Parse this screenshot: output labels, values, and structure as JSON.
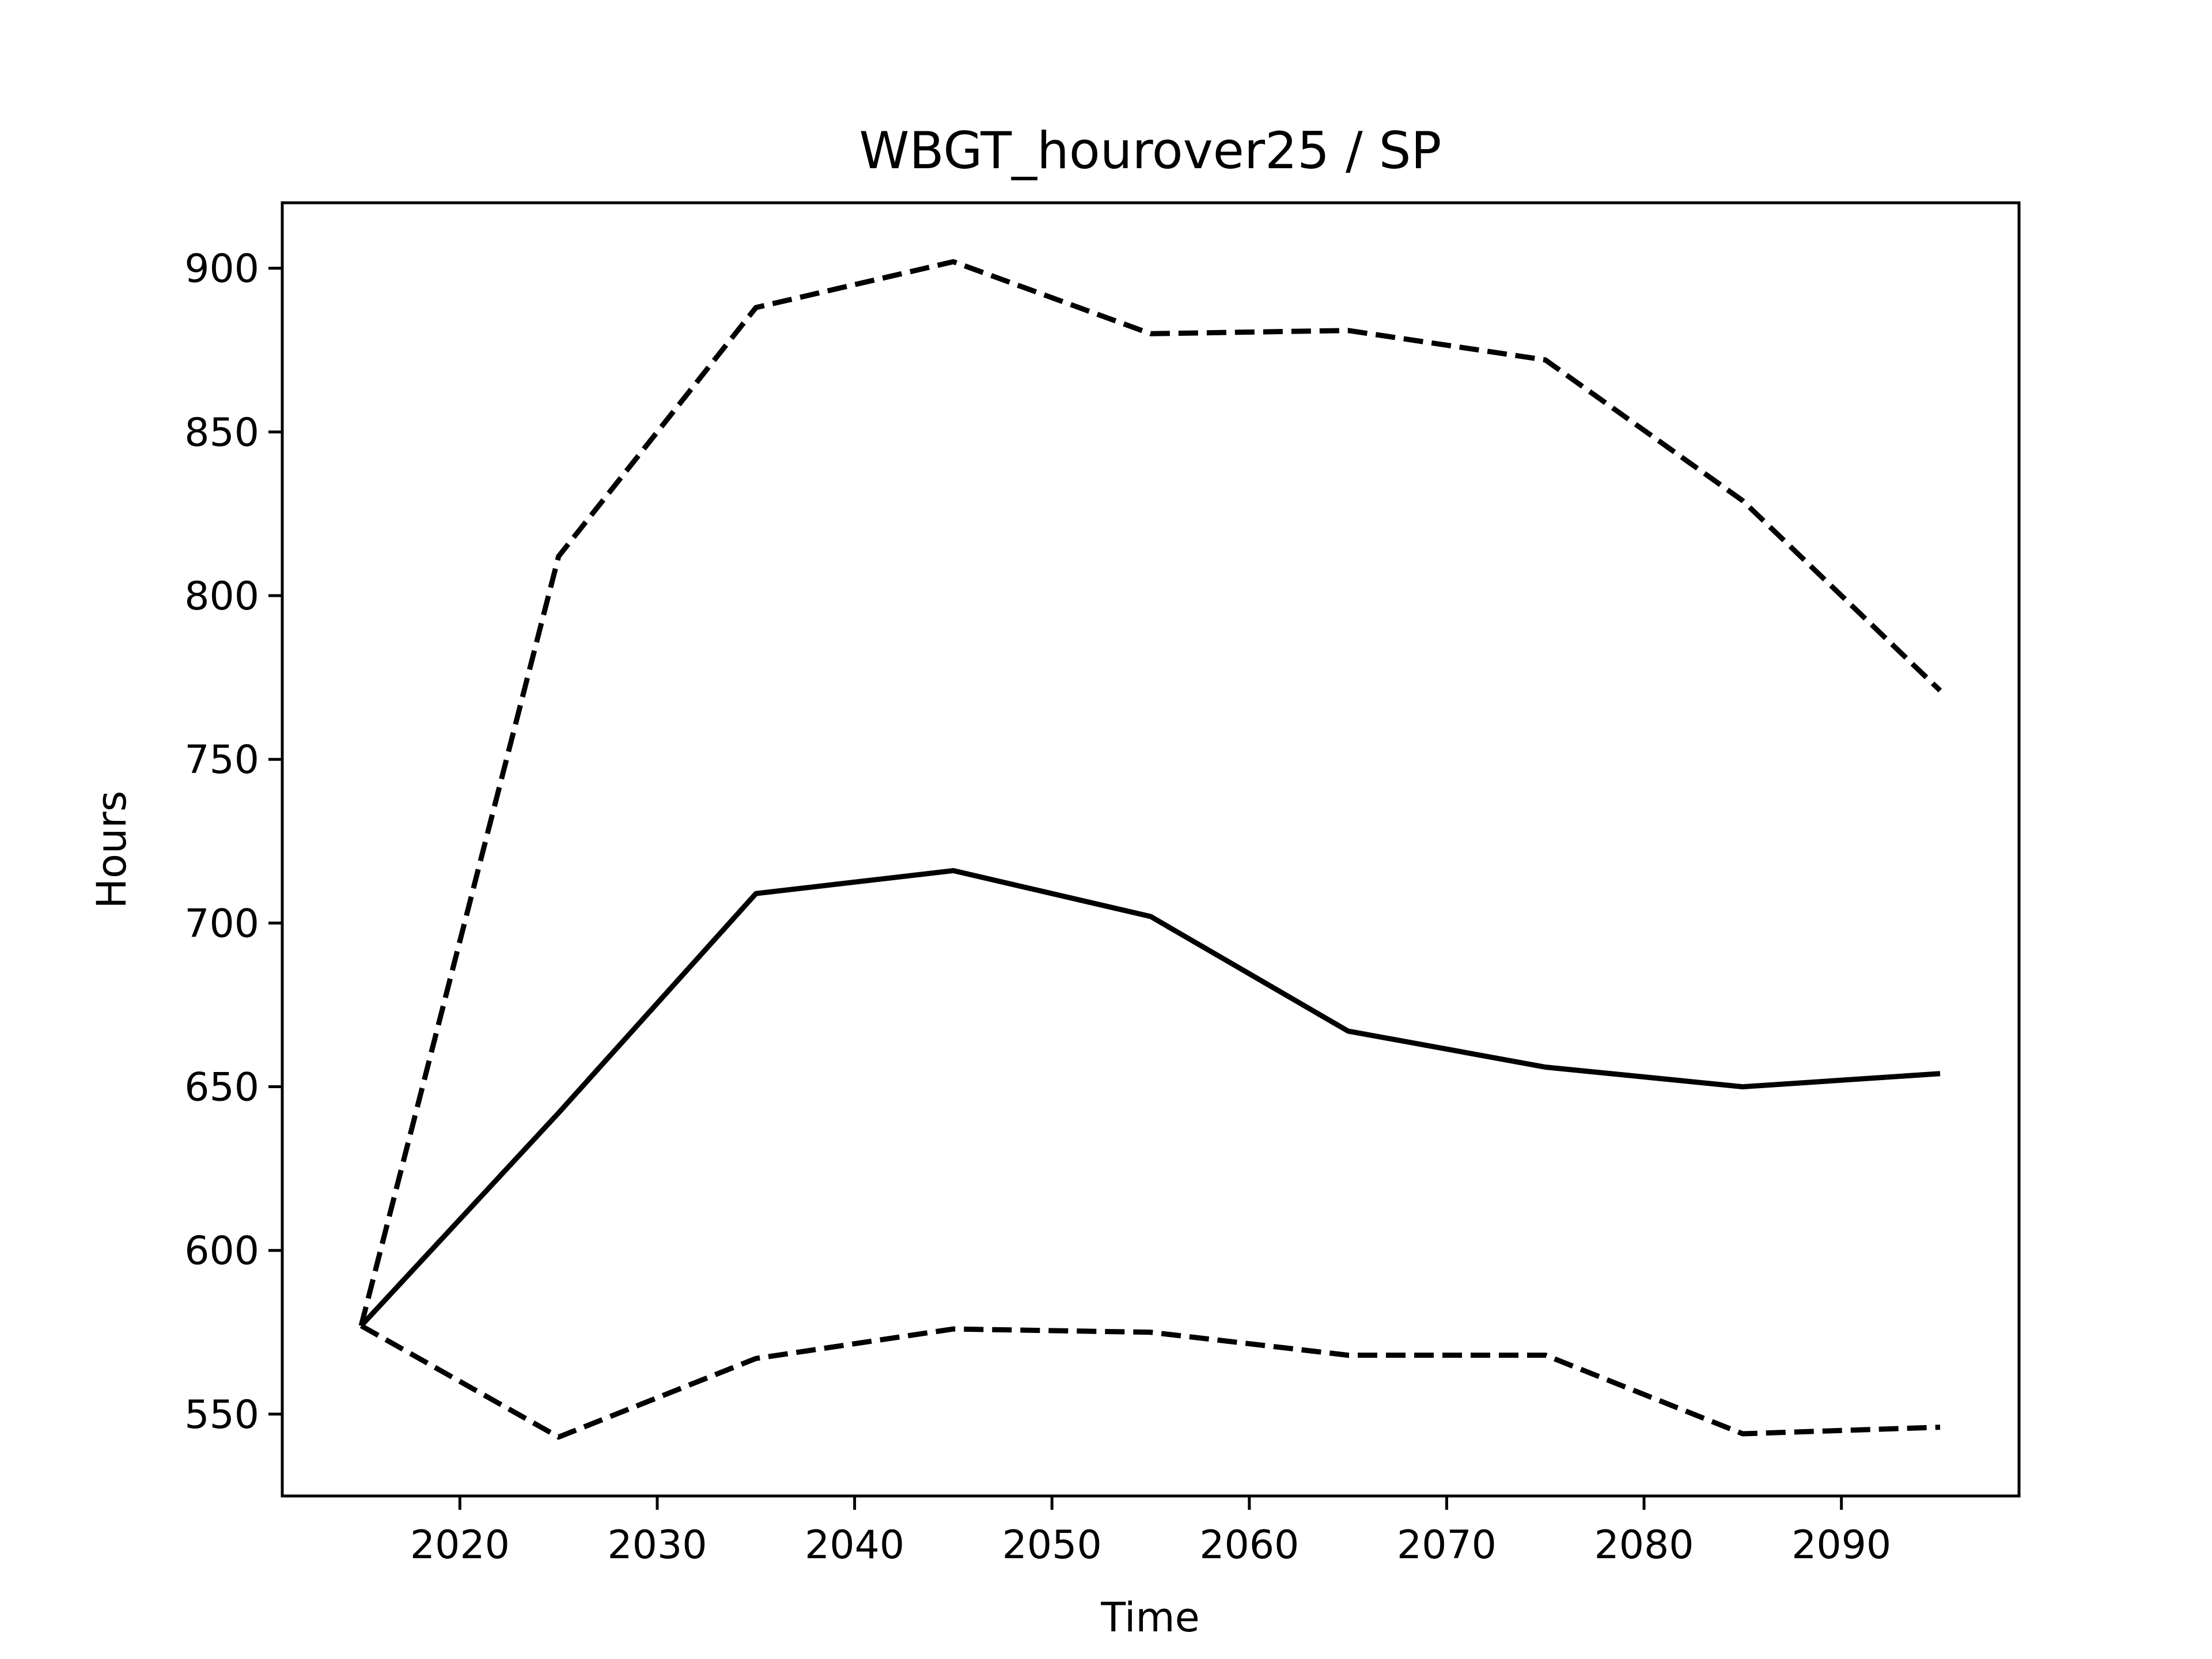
{
  "chart_data": {
    "type": "line",
    "title": "WBGT_hourover25 / SP",
    "xlabel": "Time",
    "ylabel": "Hours",
    "xlim": [
      2011,
      2099
    ],
    "ylim": [
      525,
      920
    ],
    "xticks": [
      2020,
      2030,
      2040,
      2050,
      2060,
      2070,
      2080,
      2090
    ],
    "yticks": [
      550,
      600,
      650,
      700,
      750,
      800,
      850,
      900
    ],
    "x": [
      2015,
      2025,
      2035,
      2045,
      2055,
      2065,
      2075,
      2085,
      2095
    ],
    "grid": false,
    "series": [
      {
        "style": "dashed",
        "color": "#000000",
        "values": [
          577,
          812,
          888,
          902,
          880,
          881,
          872,
          829,
          771
        ]
      },
      {
        "style": "solid",
        "color": "#000000",
        "values": [
          577,
          642,
          709,
          716,
          702,
          667,
          656,
          650,
          654
        ]
      },
      {
        "style": "dashed",
        "color": "#000000",
        "values": [
          577,
          543,
          567,
          576,
          575,
          568,
          568,
          544,
          546
        ]
      }
    ]
  }
}
